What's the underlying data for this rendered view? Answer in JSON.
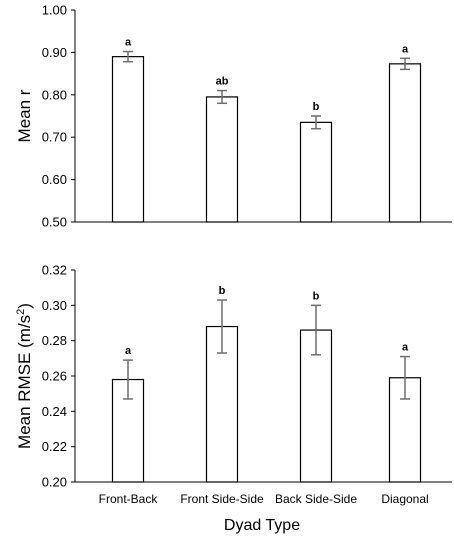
{
  "chart_data": [
    {
      "type": "bar",
      "ylabel": "Mean r",
      "ylabel_sup": "",
      "ylabel_tail": "",
      "ylim": [
        0.5,
        1.0
      ],
      "yticks": [
        "0.50",
        "0.60",
        "0.70",
        "0.80",
        "0.90",
        "1.00"
      ],
      "categories": [
        "Front-Back",
        "Front Side-Side",
        "Back Side-Side",
        "Diagonal"
      ],
      "values": [
        0.89,
        0.795,
        0.735,
        0.873
      ],
      "errors": [
        0.012,
        0.015,
        0.015,
        0.013
      ],
      "significance": [
        "a",
        "ab",
        "b",
        "a"
      ],
      "grid": false
    },
    {
      "type": "bar",
      "ylabel": "Mean RMSE (m/s",
      "ylabel_sup": "2",
      "ylabel_tail": ")",
      "ylim": [
        0.2,
        0.32
      ],
      "yticks": [
        "0.20",
        "0.22",
        "0.24",
        "0.26",
        "0.28",
        "0.30",
        "0.32"
      ],
      "categories": [
        "Front-Back",
        "Front Side-Side",
        "Back Side-Side",
        "Diagonal"
      ],
      "values": [
        0.258,
        0.288,
        0.286,
        0.259
      ],
      "errors": [
        0.011,
        0.015,
        0.014,
        0.012
      ],
      "significance": [
        "a",
        "b",
        "b",
        "a"
      ],
      "xlabel": "Dyad Type",
      "grid": false
    }
  ]
}
